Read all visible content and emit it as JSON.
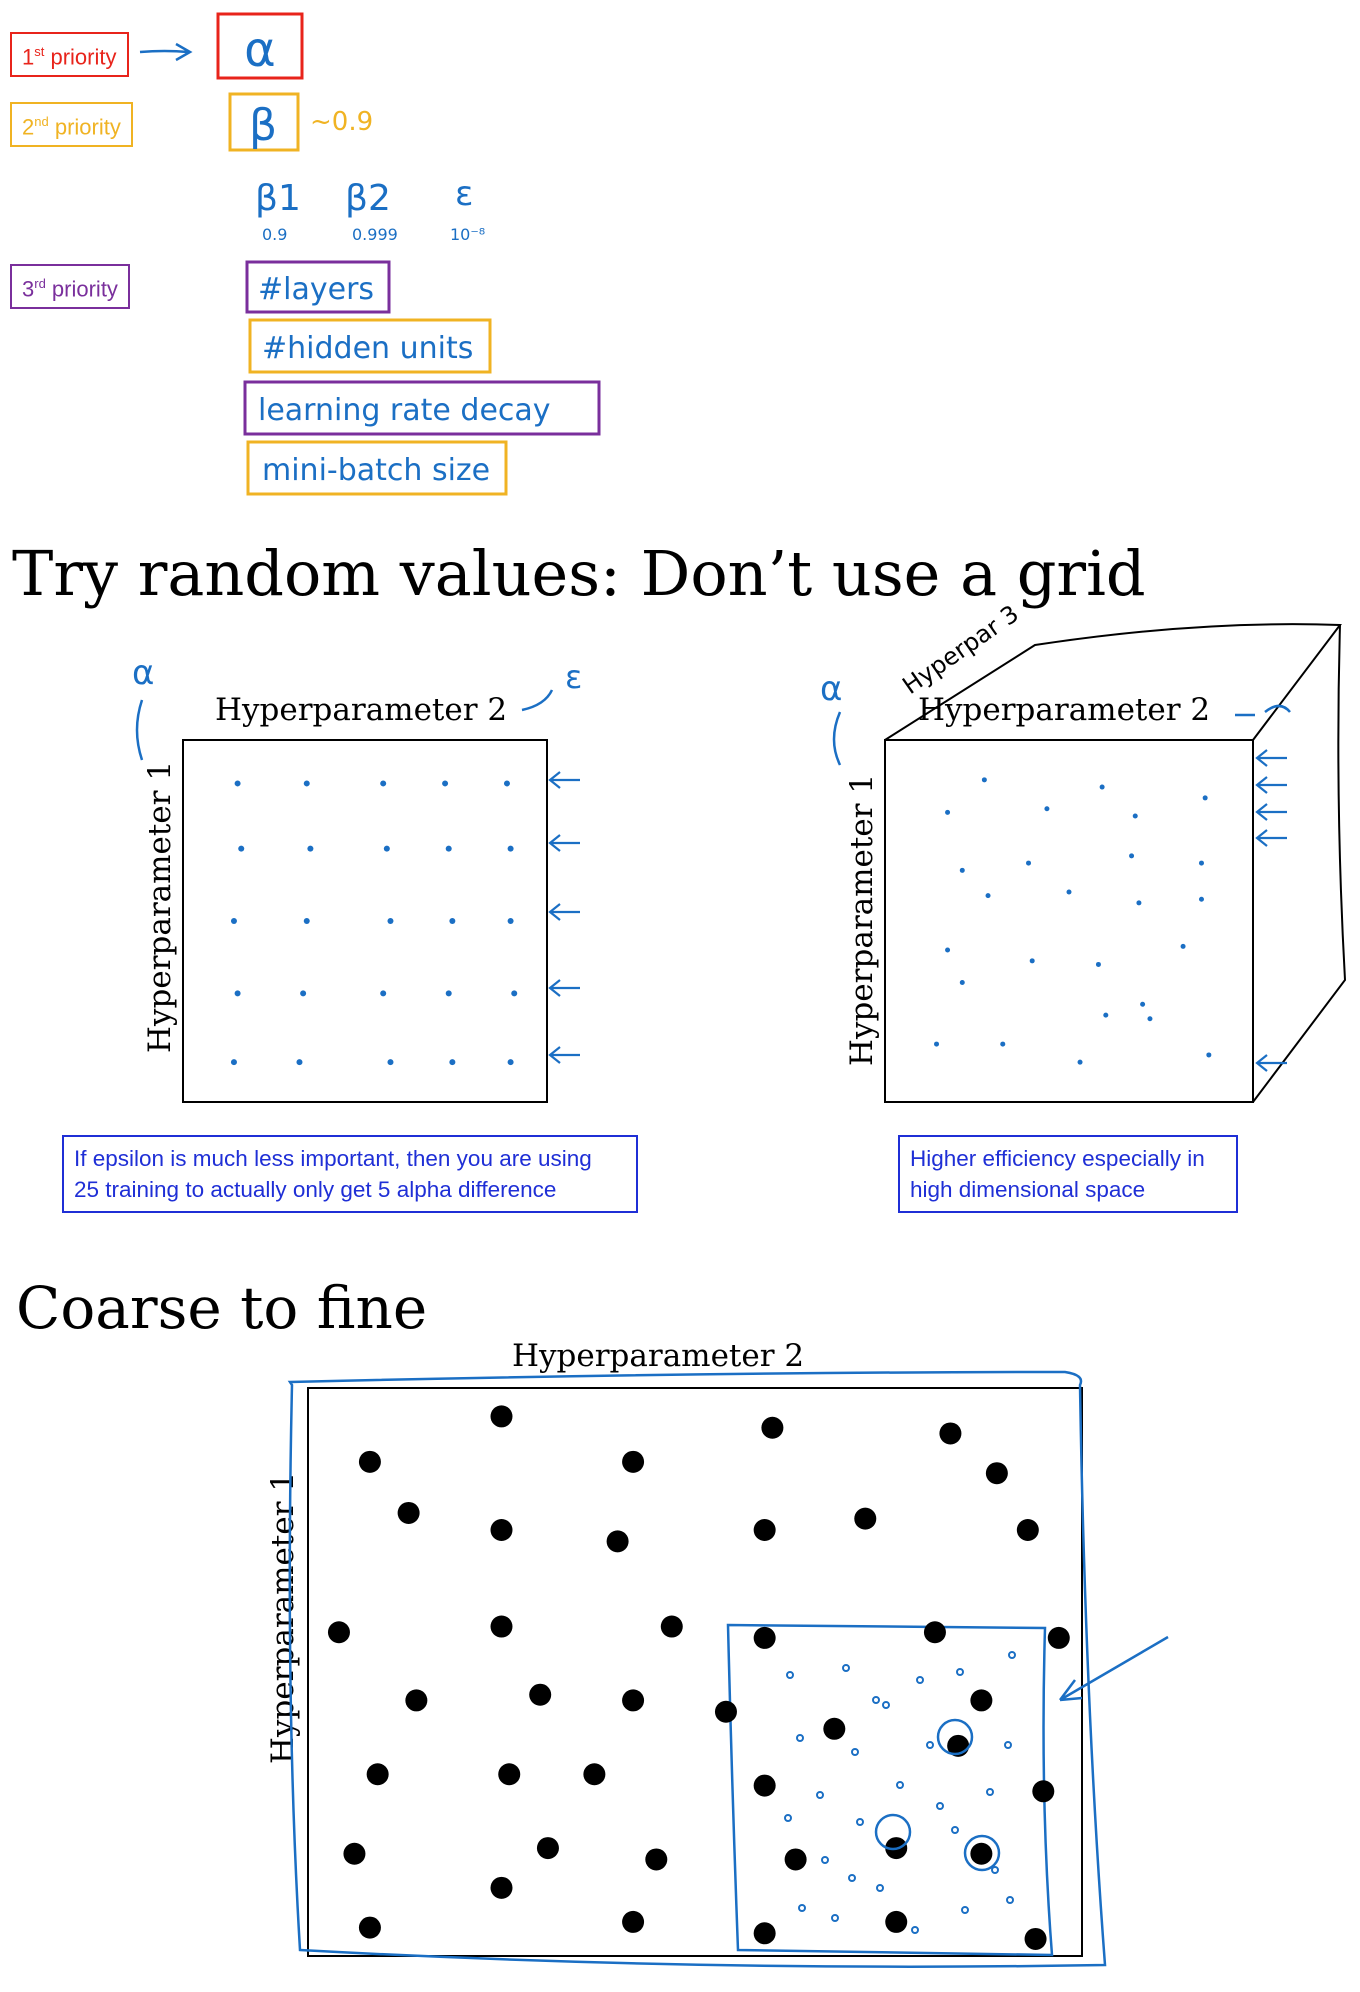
{
  "priorities": [
    {
      "label": "1st priority",
      "ord": "1",
      "sup": "st",
      "rest": " priority",
      "color": "#e8241b"
    },
    {
      "label": "2nd priority",
      "ord": "2",
      "sup": "nd",
      "rest": " priority",
      "color": "#f0b323"
    },
    {
      "label": "3rd priority",
      "ord": "3",
      "sup": "rd",
      "rest": " priority",
      "color": "#7a2f9c"
    }
  ],
  "hyperparams": {
    "alpha": "α",
    "beta": "β",
    "beta_note": "~0.9",
    "adam": {
      "b1": "β1",
      "b1_val": "0.9",
      "b2": "β2",
      "b2_val": "0.999",
      "eps": "ε",
      "eps_val": "10⁻⁸"
    },
    "layers": "#layers",
    "hidden_units": "#hidden units",
    "lr_decay": "learning rate decay",
    "minibatch": "mini-batch size"
  },
  "section1": {
    "title": "Try random values: Don’t use a grid",
    "left_panel": {
      "xlabel": "Hyperparameter 2",
      "ylabel": "Hyperparameter 1",
      "alpha_mark": "α",
      "eps_mark": "ε"
    },
    "right_panel": {
      "xlabel": "Hyperparameter 2",
      "ylabel": "Hyperparameter 1",
      "alpha_mark": "α",
      "z_label": "Hyperpar 3"
    },
    "note_left": "If epsilon is much less important, then you are using 25 training to actually only get 5 alpha difference",
    "note_left_line1": "If epsilon is much less important, then you are using",
    "note_left_line2": "25 training to actually only get 5 alpha difference",
    "note_right_line1": "Higher efficiency especially in",
    "note_right_line2": "high dimensional space"
  },
  "section2": {
    "title": "Coarse to fine",
    "xlabel": "Hyperparameter 2",
    "ylabel": "Hyperparameter 1"
  },
  "chart_data": [
    {
      "type": "scatter",
      "title": "",
      "xlabel": "Hyperparameter 2",
      "ylabel": "Hyperparameter 1",
      "xlim": [
        0,
        1
      ],
      "ylim": [
        0,
        1
      ],
      "points": [
        [
          0.15,
          0.88
        ],
        [
          0.34,
          0.88
        ],
        [
          0.55,
          0.88
        ],
        [
          0.72,
          0.88
        ],
        [
          0.89,
          0.88
        ],
        [
          0.16,
          0.7
        ],
        [
          0.35,
          0.7
        ],
        [
          0.56,
          0.7
        ],
        [
          0.73,
          0.7
        ],
        [
          0.9,
          0.7
        ],
        [
          0.14,
          0.5
        ],
        [
          0.34,
          0.5
        ],
        [
          0.57,
          0.5
        ],
        [
          0.74,
          0.5
        ],
        [
          0.9,
          0.5
        ],
        [
          0.15,
          0.3
        ],
        [
          0.33,
          0.3
        ],
        [
          0.55,
          0.3
        ],
        [
          0.73,
          0.3
        ],
        [
          0.91,
          0.3
        ],
        [
          0.14,
          0.11
        ],
        [
          0.32,
          0.11
        ],
        [
          0.57,
          0.11
        ],
        [
          0.74,
          0.11
        ],
        [
          0.9,
          0.11
        ]
      ]
    },
    {
      "type": "scatter",
      "title": "",
      "xlabel": "Hyperparameter 2",
      "ylabel": "Hyperparameter 1",
      "xlim": [
        0,
        1
      ],
      "ylim": [
        0,
        1
      ],
      "points": [
        [
          0.27,
          0.89
        ],
        [
          0.59,
          0.87
        ],
        [
          0.87,
          0.84
        ],
        [
          0.17,
          0.8
        ],
        [
          0.44,
          0.81
        ],
        [
          0.68,
          0.79
        ],
        [
          0.39,
          0.66
        ],
        [
          0.67,
          0.68
        ],
        [
          0.86,
          0.66
        ],
        [
          0.21,
          0.64
        ],
        [
          0.5,
          0.58
        ],
        [
          0.69,
          0.55
        ],
        [
          0.86,
          0.56
        ],
        [
          0.28,
          0.57
        ],
        [
          0.17,
          0.42
        ],
        [
          0.4,
          0.39
        ],
        [
          0.58,
          0.38
        ],
        [
          0.81,
          0.43
        ],
        [
          0.21,
          0.33
        ],
        [
          0.6,
          0.24
        ],
        [
          0.72,
          0.23
        ],
        [
          0.14,
          0.16
        ],
        [
          0.32,
          0.16
        ],
        [
          0.53,
          0.11
        ],
        [
          0.88,
          0.13
        ],
        [
          0.7,
          0.27
        ]
      ]
    },
    {
      "type": "scatter",
      "title": "",
      "xlabel": "Hyperparameter 2",
      "ylabel": "Hyperparameter 1",
      "xlim": [
        0,
        1
      ],
      "ylim": [
        0,
        1
      ],
      "points": [
        [
          0.25,
          0.95
        ],
        [
          0.6,
          0.93
        ],
        [
          0.08,
          0.87
        ],
        [
          0.42,
          0.87
        ],
        [
          0.83,
          0.92
        ],
        [
          0.89,
          0.85
        ],
        [
          0.13,
          0.78
        ],
        [
          0.25,
          0.75
        ],
        [
          0.4,
          0.73
        ],
        [
          0.59,
          0.75
        ],
        [
          0.72,
          0.77
        ],
        [
          0.93,
          0.75
        ],
        [
          0.04,
          0.57
        ],
        [
          0.25,
          0.58
        ],
        [
          0.47,
          0.58
        ],
        [
          0.59,
          0.56
        ],
        [
          0.81,
          0.57
        ],
        [
          0.97,
          0.56
        ],
        [
          0.14,
          0.45
        ],
        [
          0.3,
          0.46
        ],
        [
          0.42,
          0.45
        ],
        [
          0.54,
          0.43
        ],
        [
          0.68,
          0.4
        ],
        [
          0.87,
          0.45
        ],
        [
          0.09,
          0.32
        ],
        [
          0.26,
          0.32
        ],
        [
          0.37,
          0.32
        ],
        [
          0.59,
          0.3
        ],
        [
          0.84,
          0.37
        ],
        [
          0.95,
          0.29
        ],
        [
          0.06,
          0.18
        ],
        [
          0.31,
          0.19
        ],
        [
          0.45,
          0.17
        ],
        [
          0.63,
          0.17
        ],
        [
          0.76,
          0.19
        ],
        [
          0.87,
          0.18
        ],
        [
          0.08,
          0.05
        ],
        [
          0.25,
          0.12
        ],
        [
          0.42,
          0.06
        ],
        [
          0.59,
          0.04
        ],
        [
          0.76,
          0.06
        ],
        [
          0.94,
          0.03
        ]
      ]
    }
  ]
}
